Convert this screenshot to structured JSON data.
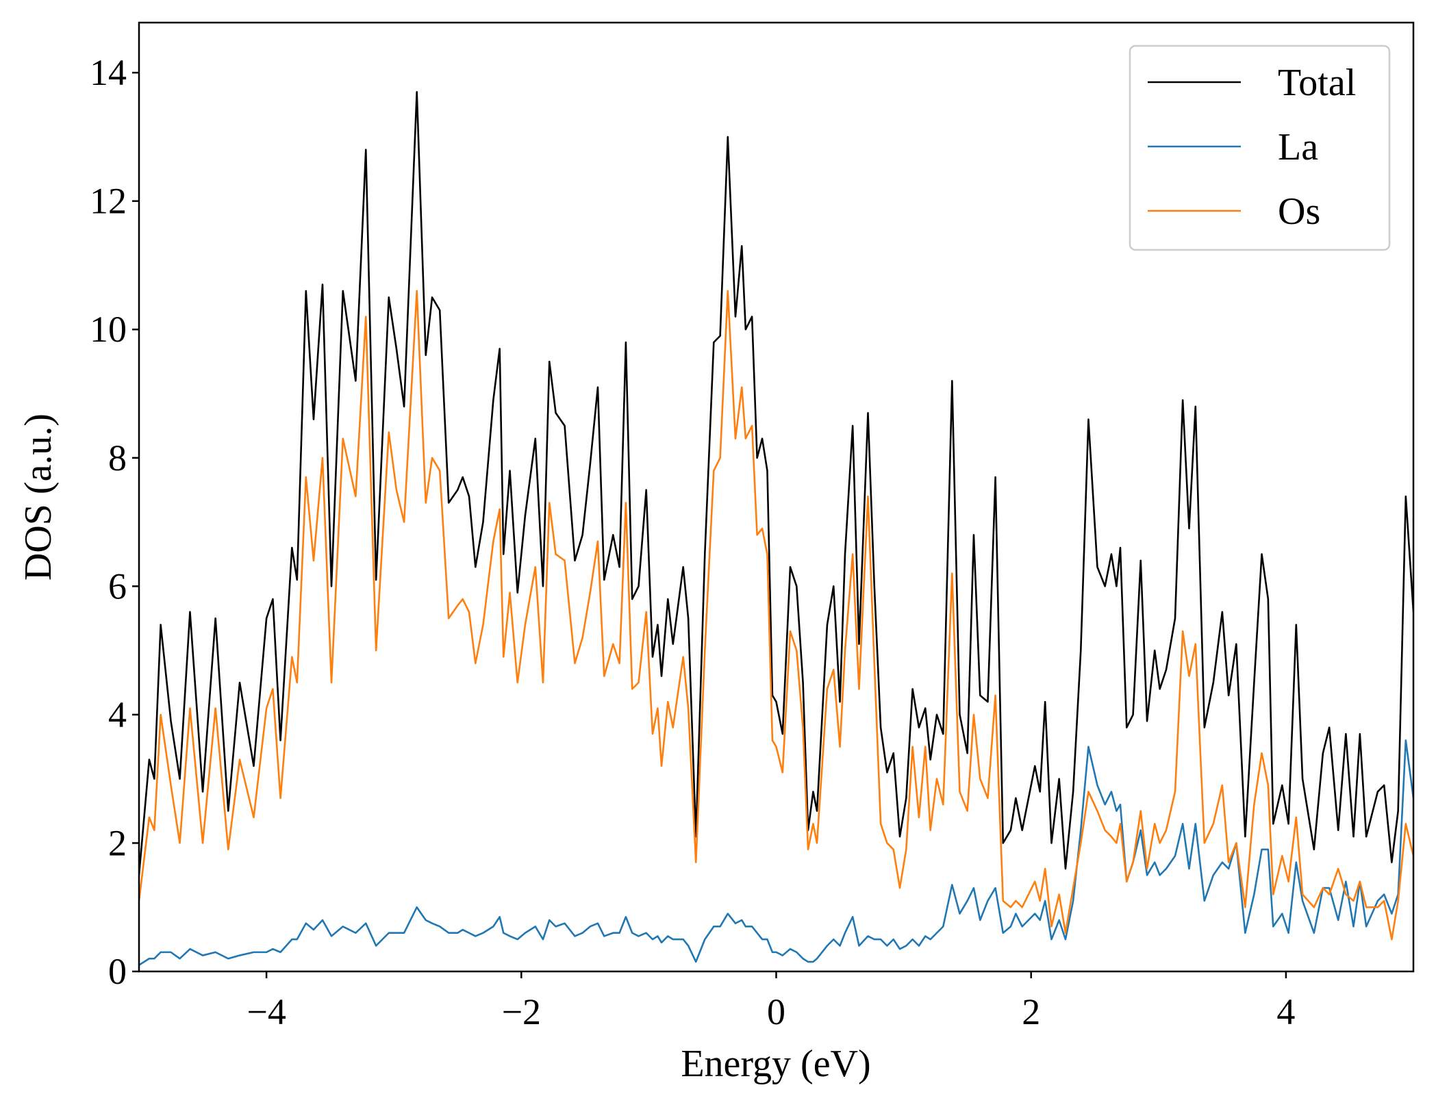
{
  "chart_data": {
    "type": "line",
    "xlabel": "Energy (eV)",
    "ylabel": "DOS (a.u.)",
    "xlim": [
      -5,
      5
    ],
    "ylim": [
      0,
      14.78
    ],
    "xticks": [
      {
        "value": -4,
        "label": "−4"
      },
      {
        "value": -2,
        "label": "−2"
      },
      0,
      2,
      4
    ],
    "yticks": [
      0,
      2,
      4,
      6,
      8,
      10,
      12,
      14
    ],
    "grid": false,
    "legend": "upper right",
    "x": [
      -5,
      -4.92,
      -4.88,
      -4.83,
      -4.75,
      -4.68,
      -4.6,
      -4.5,
      -4.4,
      -4.3,
      -4.21,
      -4.1,
      -4.0,
      -3.95,
      -3.89,
      -3.8,
      -3.76,
      -3.69,
      -3.63,
      -3.56,
      -3.49,
      -3.4,
      -3.3,
      -3.22,
      -3.14,
      -3.04,
      -2.98,
      -2.92,
      -2.82,
      -2.75,
      -2.7,
      -2.64,
      -2.57,
      -2.5,
      -2.46,
      -2.41,
      -2.36,
      -2.3,
      -2.22,
      -2.17,
      -2.14,
      -2.09,
      -2.03,
      -1.97,
      -1.89,
      -1.83,
      -1.78,
      -1.73,
      -1.66,
      -1.58,
      -1.52,
      -1.46,
      -1.4,
      -1.35,
      -1.28,
      -1.23,
      -1.18,
      -1.13,
      -1.08,
      -1.02,
      -0.97,
      -0.93,
      -0.9,
      -0.85,
      -0.81,
      -0.73,
      -0.69,
      -0.63,
      -0.56,
      -0.49,
      -0.44,
      -0.38,
      -0.32,
      -0.27,
      -0.24,
      -0.19,
      -0.15,
      -0.11,
      -0.07,
      -0.03,
      0,
      0.05,
      0.11,
      0.16,
      0.21,
      0.25,
      0.29,
      0.32,
      0.4,
      0.45,
      0.5,
      0.54,
      0.6,
      0.65,
      0.72,
      0.77,
      0.82,
      0.87,
      0.92,
      0.97,
      1.02,
      1.07,
      1.12,
      1.17,
      1.21,
      1.26,
      1.31,
      1.38,
      1.44,
      1.5,
      1.55,
      1.6,
      1.66,
      1.72,
      1.78,
      1.84,
      1.88,
      1.93,
      2.03,
      2.07,
      2.11,
      2.16,
      2.22,
      2.27,
      2.33,
      2.39,
      2.45,
      2.52,
      2.58,
      2.63,
      2.67,
      2.7,
      2.75,
      2.8,
      2.86,
      2.91,
      2.97,
      3.01,
      3.06,
      3.13,
      3.19,
      3.24,
      3.29,
      3.36,
      3.43,
      3.5,
      3.55,
      3.61,
      3.68,
      3.75,
      3.81,
      3.86,
      3.9,
      3.97,
      4.02,
      4.08,
      4.13,
      4.22,
      4.29,
      4.34,
      4.41,
      4.47,
      4.53,
      4.58,
      4.63,
      4.72,
      4.77,
      4.83,
      4.88,
      4.94,
      5
    ],
    "series": [
      {
        "name": "Total",
        "color": "#000000",
        "values": [
          1.5,
          3.3,
          3.0,
          5.4,
          3.9,
          3.0,
          5.6,
          2.8,
          5.5,
          2.5,
          4.5,
          3.2,
          5.5,
          5.8,
          3.6,
          6.6,
          6.1,
          10.6,
          8.6,
          10.7,
          6.0,
          10.6,
          9.2,
          12.8,
          6.1,
          10.5,
          9.7,
          8.8,
          13.7,
          9.6,
          10.5,
          10.3,
          7.3,
          7.5,
          7.7,
          7.4,
          6.3,
          7.0,
          8.9,
          9.7,
          6.5,
          7.8,
          5.9,
          7.1,
          8.3,
          6.0,
          9.5,
          8.7,
          8.5,
          6.4,
          6.8,
          7.9,
          9.1,
          6.1,
          6.8,
          6.3,
          9.8,
          5.8,
          6.0,
          7.5,
          4.9,
          5.4,
          4.6,
          5.8,
          5.1,
          6.3,
          5.5,
          2.1,
          6.5,
          9.8,
          9.9,
          13.0,
          10.2,
          11.3,
          10.0,
          10.2,
          8.0,
          8.3,
          7.8,
          4.3,
          4.2,
          3.7,
          6.3,
          6.0,
          4.5,
          2.2,
          2.8,
          2.5,
          5.4,
          6.0,
          4.2,
          6.5,
          8.5,
          5.1,
          8.7,
          6.0,
          3.8,
          3.1,
          3.4,
          2.1,
          2.7,
          4.4,
          3.8,
          4.1,
          3.3,
          4.0,
          3.7,
          9.2,
          4.0,
          3.4,
          6.8,
          4.3,
          4.2,
          7.7,
          2.0,
          2.2,
          2.7,
          2.2,
          3.2,
          2.8,
          4.2,
          2.0,
          3.0,
          1.6,
          2.8,
          5.0,
          8.6,
          6.3,
          6.0,
          6.5,
          6.0,
          6.6,
          3.8,
          4.0,
          6.4,
          3.9,
          5.0,
          4.4,
          4.7,
          5.5,
          8.9,
          6.9,
          8.8,
          3.8,
          4.5,
          5.6,
          4.3,
          5.1,
          2.1,
          4.5,
          6.5,
          5.8,
          2.3,
          2.9,
          2.3,
          5.4,
          3.0,
          1.9,
          3.4,
          3.8,
          2.2,
          3.7,
          2.1,
          3.7,
          2.1,
          2.8,
          2.9,
          1.7,
          2.5,
          7.4,
          5.6
        ]
      },
      {
        "name": "La",
        "color": "#1f77b4",
        "values": [
          0.1,
          0.2,
          0.2,
          0.3,
          0.3,
          0.2,
          0.35,
          0.25,
          0.3,
          0.2,
          0.25,
          0.3,
          0.3,
          0.35,
          0.3,
          0.5,
          0.5,
          0.75,
          0.65,
          0.8,
          0.55,
          0.7,
          0.6,
          0.75,
          0.4,
          0.6,
          0.6,
          0.6,
          1.0,
          0.8,
          0.75,
          0.7,
          0.6,
          0.6,
          0.65,
          0.6,
          0.55,
          0.6,
          0.7,
          0.85,
          0.6,
          0.55,
          0.5,
          0.6,
          0.7,
          0.5,
          0.8,
          0.7,
          0.75,
          0.55,
          0.6,
          0.7,
          0.75,
          0.55,
          0.6,
          0.6,
          0.85,
          0.6,
          0.55,
          0.6,
          0.5,
          0.55,
          0.45,
          0.55,
          0.5,
          0.5,
          0.4,
          0.15,
          0.5,
          0.7,
          0.7,
          0.9,
          0.75,
          0.8,
          0.7,
          0.7,
          0.6,
          0.5,
          0.5,
          0.3,
          0.3,
          0.25,
          0.35,
          0.3,
          0.2,
          0.15,
          0.15,
          0.2,
          0.4,
          0.5,
          0.4,
          0.6,
          0.85,
          0.4,
          0.55,
          0.5,
          0.5,
          0.4,
          0.5,
          0.35,
          0.4,
          0.5,
          0.4,
          0.55,
          0.5,
          0.6,
          0.7,
          1.35,
          0.9,
          1.1,
          1.3,
          0.8,
          1.1,
          1.3,
          0.6,
          0.7,
          0.9,
          0.7,
          0.9,
          0.8,
          1.1,
          0.5,
          0.8,
          0.5,
          1.1,
          2.2,
          3.5,
          2.9,
          2.6,
          2.8,
          2.5,
          2.6,
          1.4,
          1.7,
          2.2,
          1.5,
          1.7,
          1.5,
          1.6,
          1.8,
          2.3,
          1.6,
          2.3,
          1.1,
          1.5,
          1.7,
          1.6,
          2.0,
          0.6,
          1.2,
          1.9,
          1.9,
          0.7,
          0.9,
          0.6,
          1.7,
          1.1,
          0.6,
          1.3,
          1.3,
          0.8,
          1.4,
          0.7,
          1.4,
          0.7,
          1.1,
          1.2,
          0.9,
          1.2,
          3.6,
          2.7
        ]
      },
      {
        "name": "Os",
        "color": "#ff7f0e",
        "values": [
          1.1,
          2.4,
          2.2,
          4.0,
          2.9,
          2.0,
          4.1,
          2.0,
          4.1,
          1.9,
          3.3,
          2.4,
          4.1,
          4.4,
          2.7,
          4.9,
          4.5,
          7.7,
          6.4,
          8.0,
          4.5,
          8.3,
          7.4,
          10.2,
          5.0,
          8.4,
          7.5,
          7.0,
          10.6,
          7.3,
          8.0,
          7.8,
          5.5,
          5.7,
          5.8,
          5.6,
          4.8,
          5.4,
          6.7,
          7.2,
          4.9,
          5.9,
          4.5,
          5.4,
          6.3,
          4.5,
          7.3,
          6.5,
          6.4,
          4.8,
          5.2,
          5.9,
          6.7,
          4.6,
          5.1,
          4.8,
          7.3,
          4.4,
          4.5,
          5.6,
          3.7,
          4.1,
          3.2,
          4.2,
          3.8,
          4.9,
          4.1,
          1.7,
          5.0,
          7.8,
          8.0,
          10.6,
          8.3,
          9.1,
          8.3,
          8.5,
          6.8,
          6.9,
          6.5,
          3.6,
          3.5,
          3.1,
          5.3,
          5.0,
          3.8,
          1.9,
          2.3,
          2.0,
          4.4,
          4.7,
          3.5,
          5.0,
          6.5,
          4.4,
          7.4,
          4.8,
          2.3,
          2.0,
          1.9,
          1.3,
          1.9,
          3.5,
          2.4,
          3.5,
          2.2,
          3.0,
          2.6,
          6.2,
          2.8,
          2.5,
          4.0,
          3.0,
          2.7,
          4.3,
          1.1,
          1.0,
          1.1,
          1.0,
          1.4,
          1.1,
          1.6,
          0.7,
          1.2,
          0.6,
          1.3,
          2.0,
          2.8,
          2.5,
          2.2,
          2.1,
          2.0,
          2.3,
          1.4,
          1.7,
          2.5,
          1.6,
          2.3,
          2.0,
          2.2,
          2.8,
          5.3,
          4.6,
          5.1,
          2.0,
          2.3,
          2.9,
          1.7,
          2.0,
          1.0,
          2.6,
          3.4,
          2.9,
          1.2,
          1.8,
          1.4,
          2.4,
          1.2,
          1.0,
          1.3,
          1.2,
          1.6,
          1.2,
          1.1,
          1.4,
          1.0,
          1.0,
          1.1,
          0.5,
          1.1,
          2.3,
          1.8
        ]
      }
    ]
  }
}
